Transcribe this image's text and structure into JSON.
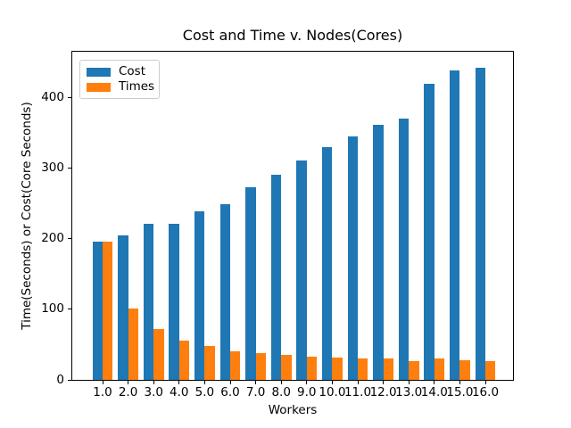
{
  "figure": {
    "title": "Cost and Time v. Nodes(Cores)"
  },
  "chart_data": {
    "type": "bar",
    "title": "Cost and Time v. Nodes(Cores)",
    "xlabel": "Workers",
    "ylabel": "Time(Seconds) or Cost(Core Seconds)",
    "categories": [
      "1.0",
      "2.0",
      "3.0",
      "4.0",
      "5.0",
      "6.0",
      "7.0",
      "8.0",
      "9.0",
      "10.0",
      "11.0",
      "12.0",
      "13.0",
      "14.0",
      "15.0",
      "16.0"
    ],
    "series": [
      {
        "name": "Cost",
        "color": "#1f77b4",
        "values": [
          196,
          205,
          221,
          221,
          239,
          249,
          273,
          291,
          311,
          330,
          345,
          362,
          370,
          420,
          438,
          442
        ]
      },
      {
        "name": "Times",
        "color": "#ff7f0e",
        "values": [
          196,
          101,
          72,
          55,
          48,
          41,
          38,
          36,
          33,
          32,
          30,
          30,
          27,
          30,
          28,
          27
        ]
      }
    ],
    "ylim": [
      0,
      465
    ],
    "yticks": [
      0,
      100,
      200,
      300,
      400
    ],
    "legend_position": "upper left",
    "grid": false,
    "background_color": "#ffffff",
    "axis_color": "#000000"
  }
}
